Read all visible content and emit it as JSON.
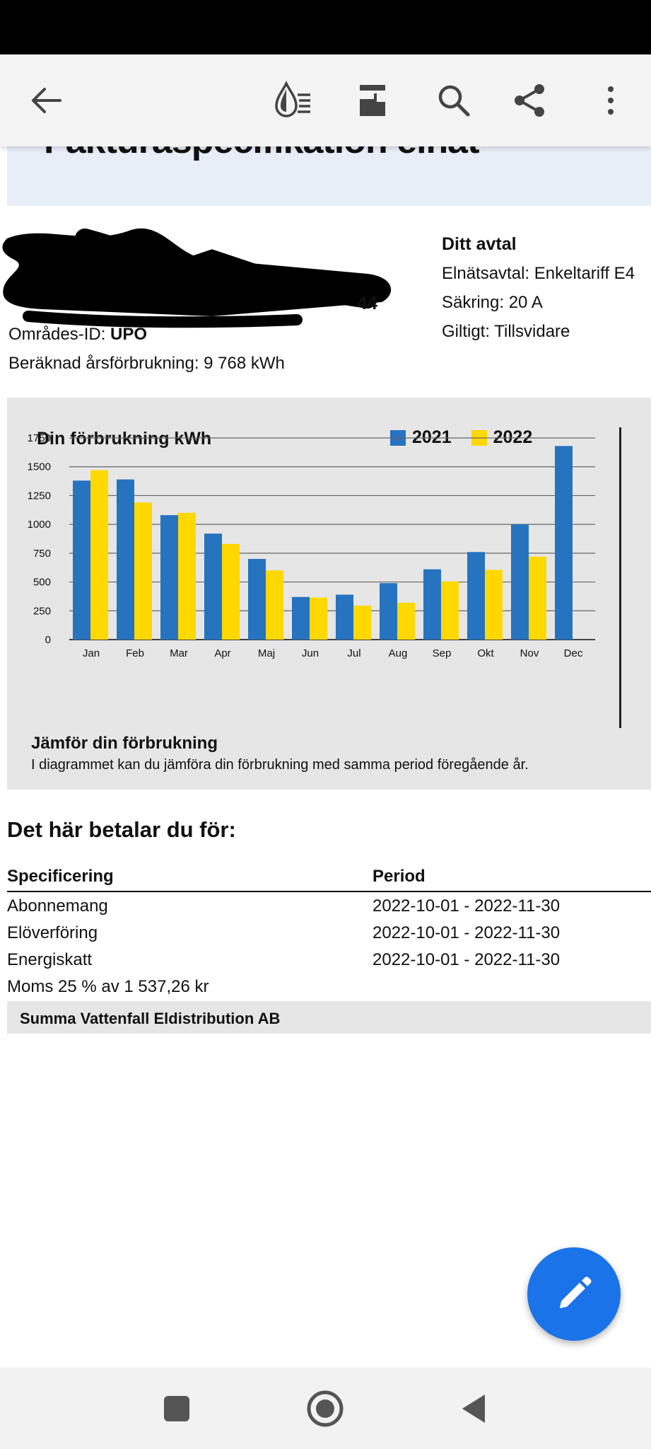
{
  "toolbar": {
    "icons": [
      "back-arrow-icon",
      "reading-mode-icon",
      "layout-icon",
      "search-icon",
      "share-icon",
      "more-vert-icon"
    ]
  },
  "document": {
    "title_partial": "Fakturaspecifikation elnät",
    "customer": {
      "id_suffix": "44",
      "area_label": "Områdes-ID:",
      "area_value": "UPO",
      "annual_label": "Beräknad årsförbrukning:",
      "annual_value": "9 768 kWh"
    },
    "contract": {
      "header": "Ditt avtal",
      "elnatsavtal": "Elnätsavtal: Enkeltariff E4",
      "sakring": "Säkring: 20 A",
      "giltigt": "Giltigt: Tillsvidare"
    },
    "chart_footer": {
      "title": "Jämför din förbrukning",
      "text": "I diagrammet kan du jämföra din förbrukning med samma period föregående år."
    },
    "pay": {
      "title": "Det här betalar du för:",
      "col_spec": "Specificering",
      "col_period": "Period",
      "rows": [
        {
          "label": "Abonnemang",
          "period": "2022-10-01 - 2022-11-30"
        },
        {
          "label": "Elöverföring",
          "period": "2022-10-01 - 2022-11-30"
        },
        {
          "label": "Energiskatt",
          "period": "2022-10-01 - 2022-11-30"
        },
        {
          "label": "Moms 25 % av 1 537,26 kr",
          "period": ""
        }
      ],
      "sum_label": "Summa Vattenfall Eldistribution AB"
    }
  },
  "chart_data": {
    "type": "bar",
    "title": "Din förbrukning kWh",
    "categories": [
      "Jan",
      "Feb",
      "Mar",
      "Apr",
      "Maj",
      "Jun",
      "Jul",
      "Aug",
      "Sep",
      "Okt",
      "Nov",
      "Dec"
    ],
    "series": [
      {
        "name": "2021",
        "color": "#2673c0",
        "values": [
          1380,
          1390,
          1080,
          920,
          700,
          370,
          390,
          490,
          610,
          760,
          1000,
          1680
        ]
      },
      {
        "name": "2022",
        "color": "#ffd800",
        "values": [
          1470,
          1190,
          1100,
          830,
          600,
          365,
          295,
          320,
          505,
          605,
          720,
          null
        ]
      }
    ],
    "ylim": [
      0,
      1750
    ],
    "yticks": [
      0,
      250,
      500,
      750,
      1000,
      1250,
      1500,
      1750
    ],
    "grid": true,
    "legend": "top-right"
  },
  "fab": {
    "icon": "edit-pencil-icon"
  },
  "nav": {
    "icons": [
      "recents-square-icon",
      "home-circle-icon",
      "back-triangle-icon"
    ]
  }
}
